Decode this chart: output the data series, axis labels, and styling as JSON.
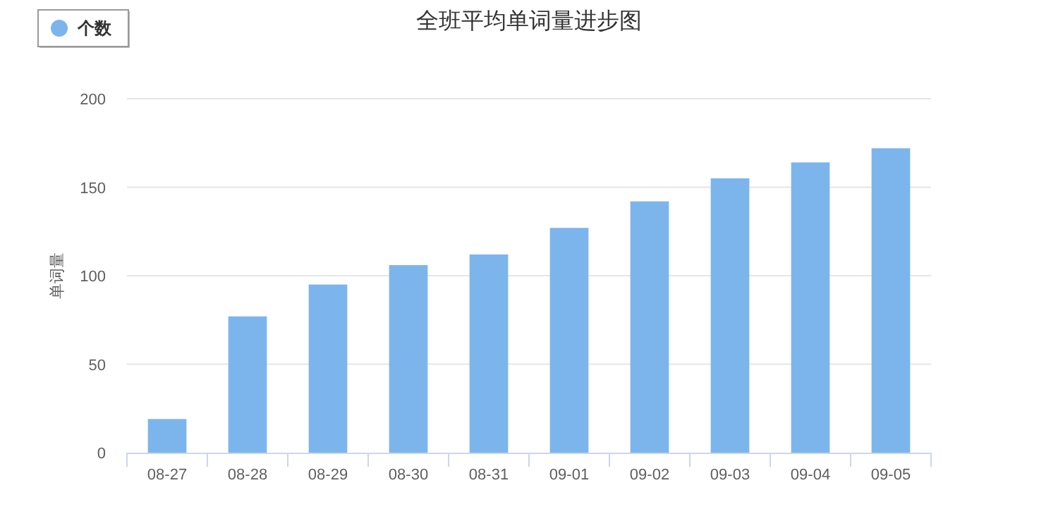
{
  "chart_data": {
    "type": "bar",
    "title": "全班平均单词量进步图",
    "ylabel": "单词量",
    "categories": [
      "08-27",
      "08-28",
      "08-29",
      "08-30",
      "08-31",
      "09-01",
      "09-02",
      "09-03",
      "09-04",
      "09-05"
    ],
    "series": [
      {
        "name": "个数",
        "color": "#7cb5ec",
        "values": [
          19,
          77,
          95,
          106,
          112,
          127,
          142,
          155,
          164,
          172
        ]
      }
    ],
    "ylim": [
      0,
      200
    ],
    "yticks": [
      0,
      50,
      100,
      150,
      200
    ],
    "grid": "y",
    "legend": "top left"
  }
}
